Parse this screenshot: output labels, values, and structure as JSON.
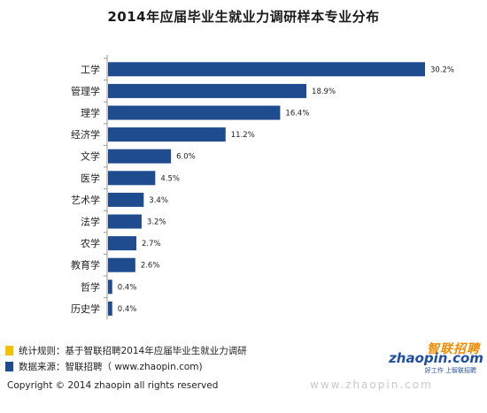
{
  "chart_data": {
    "type": "bar",
    "orientation": "horizontal",
    "title": "2014年应届毕业生就业力调研样本专业分布",
    "categories": [
      "工学",
      "管理学",
      "理学",
      "经济学",
      "文学",
      "医学",
      "艺术学",
      "法学",
      "农学",
      "教育学",
      "哲学",
      "历史学"
    ],
    "values": [
      30.2,
      18.9,
      16.4,
      11.2,
      6.0,
      4.5,
      3.4,
      3.2,
      2.7,
      2.6,
      0.4,
      0.4
    ],
    "value_labels": [
      "30.2%",
      "18.9%",
      "16.4%",
      "11.2%",
      "6.0%",
      "4.5%",
      "3.4%",
      "3.2%",
      "2.7%",
      "2.6%",
      "0.4%",
      "0.4%"
    ],
    "bar_color": "#1f4b8f",
    "xlabel": "",
    "ylabel": ""
  },
  "legend": [
    {
      "text": "统计规则：基于智联招聘2014年应届毕业生就业力调研",
      "color": "#f2c200"
    },
    {
      "text": "数据来源：智联招聘（ www.zhaopin.com)",
      "color": "#1f4b8f"
    }
  ],
  "copyright": "Copyright  ©  2014 zhaopin all rights reserved",
  "logo": {
    "cn": "智联招聘",
    "en": "zhaopin.com",
    "slogan": "好工作 上智联招聘"
  },
  "watermark": "www.zhaopin.com"
}
